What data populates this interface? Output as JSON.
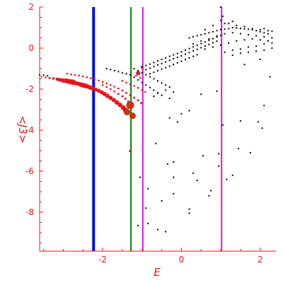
{
  "chart_data": {
    "type": "scatter",
    "title": "",
    "xlabel": "E",
    "ylabel": "<J3>",
    "xlim": [
      -3.6,
      2.4
    ],
    "ylim": [
      -9.9,
      2.0
    ],
    "xticks": [
      -2,
      0,
      2
    ],
    "yticks": [
      2,
      0,
      -2,
      -4,
      -6,
      -8
    ],
    "grid": false,
    "axis_color": "#e8141c",
    "vertical_lines": [
      {
        "x": -2.23,
        "color": "#0010e0",
        "width": "thick"
      },
      {
        "x": -1.28,
        "color": "#008000",
        "width": "thin"
      },
      {
        "x": -0.98,
        "color": "#e010e0",
        "width": "thin"
      },
      {
        "x": 1.02,
        "color": "#e010e0",
        "width": "thin"
      }
    ],
    "series": [
      {
        "color": "#e8141c",
        "marker": "circle-sized",
        "points": [
          [
            -3.55,
            -1.4,
            1.2
          ],
          [
            -3.45,
            -1.43,
            1.3
          ],
          [
            -3.35,
            -1.46,
            1.5
          ],
          [
            -3.25,
            -1.48,
            1.8
          ],
          [
            -3.15,
            -1.52,
            2.4
          ],
          [
            -3.08,
            -1.55,
            2.8
          ],
          [
            -3.0,
            -1.58,
            3.2
          ],
          [
            -2.92,
            -1.6,
            3.6
          ],
          [
            -2.84,
            -1.63,
            3.8
          ],
          [
            -2.76,
            -1.66,
            3.8
          ],
          [
            -2.7,
            -1.7,
            3.2
          ],
          [
            -2.62,
            -1.74,
            3.0
          ],
          [
            -2.55,
            -1.78,
            3.4
          ],
          [
            -2.48,
            -1.82,
            3.6
          ],
          [
            -2.4,
            -1.86,
            3.4
          ],
          [
            -2.32,
            -1.92,
            3.2
          ],
          [
            -2.25,
            -1.97,
            3.0
          ],
          [
            -2.18,
            -2.02,
            2.8
          ],
          [
            -2.1,
            -2.08,
            2.8
          ],
          [
            -2.02,
            -2.16,
            2.8
          ],
          [
            -1.95,
            -2.24,
            3.0
          ],
          [
            -1.88,
            -2.33,
            3.0
          ],
          [
            -1.8,
            -2.43,
            3.0
          ],
          [
            -1.72,
            -2.53,
            3.0
          ],
          [
            -1.64,
            -2.65,
            3.2
          ],
          [
            -1.56,
            -2.77,
            3.2
          ],
          [
            -1.48,
            -2.9,
            3.4
          ],
          [
            -1.42,
            -3.02,
            3.6
          ],
          [
            -1.38,
            -3.12,
            4.0
          ],
          [
            -1.3,
            -2.78,
            5.0
          ],
          [
            -1.24,
            -3.3,
            4.0
          ],
          [
            -1.3,
            -5.02,
            1.8
          ],
          [
            -1.1,
            -1.22,
            3.0
          ],
          [
            -1.0,
            -0.95,
            1.8
          ],
          [
            -2.9,
            -1.25,
            1.3
          ],
          [
            -2.8,
            -1.28,
            1.3
          ],
          [
            -2.7,
            -1.31,
            1.3
          ],
          [
            -2.6,
            -1.34,
            1.3
          ],
          [
            -2.5,
            -1.38,
            1.3
          ],
          [
            -2.4,
            -1.42,
            1.3
          ],
          [
            -2.3,
            -1.47,
            1.3
          ],
          [
            -2.2,
            -1.52,
            1.3
          ],
          [
            -2.1,
            -1.58,
            1.3
          ],
          [
            -2.0,
            -1.65,
            1.3
          ],
          [
            -1.9,
            -1.72,
            1.3
          ],
          [
            -1.8,
            -1.8,
            1.3
          ],
          [
            -1.7,
            -1.88,
            1.3
          ],
          [
            -1.6,
            -1.97,
            1.3
          ],
          [
            -1.5,
            -2.07,
            1.4
          ],
          [
            -1.4,
            -2.18,
            1.4
          ],
          [
            -1.3,
            -2.3,
            1.5
          ],
          [
            -1.2,
            -2.42,
            1.5
          ],
          [
            -1.1,
            -2.55,
            1.5
          ],
          [
            -1.02,
            -2.68,
            1.5
          ],
          [
            -2.0,
            -1.8,
            1.3
          ],
          [
            -1.9,
            -1.9,
            1.3
          ],
          [
            -1.8,
            -2.0,
            1.3
          ],
          [
            -1.7,
            -2.11,
            1.3
          ],
          [
            -1.6,
            -2.23,
            1.4
          ],
          [
            -1.5,
            -2.35,
            1.4
          ],
          [
            -1.42,
            -2.47,
            1.5
          ],
          [
            -1.35,
            -2.6,
            1.5
          ],
          [
            -1.5,
            -1.6,
            1.3
          ],
          [
            -1.4,
            -1.68,
            1.3
          ],
          [
            -1.3,
            -1.76,
            1.3
          ],
          [
            -1.2,
            -1.85,
            1.3
          ],
          [
            -1.1,
            -1.94,
            1.3
          ],
          [
            -1.0,
            -2.04,
            1.3
          ],
          [
            -0.92,
            -2.14,
            1.3
          ],
          [
            -1.15,
            -1.35,
            1.3
          ],
          [
            -1.05,
            -1.45,
            1.3
          ]
        ]
      },
      {
        "color": "#000000",
        "marker": "dot",
        "points": [
          [
            -3.6,
            -1.3
          ],
          [
            -3.5,
            -1.32
          ],
          [
            -3.4,
            -1.35
          ],
          [
            -1.9,
            -1.0
          ],
          [
            -1.8,
            -1.05
          ],
          [
            -1.7,
            -1.1
          ],
          [
            -1.6,
            -1.15
          ],
          [
            -1.5,
            -1.2
          ],
          [
            -1.4,
            -1.25
          ],
          [
            -1.3,
            -1.3
          ],
          [
            -1.2,
            -1.42
          ],
          [
            -1.1,
            -1.55
          ],
          [
            -1.0,
            -1.68
          ],
          [
            -0.9,
            -1.8
          ],
          [
            -0.8,
            -1.92
          ],
          [
            -0.7,
            -2.05
          ],
          [
            -0.6,
            -2.18
          ],
          [
            -0.5,
            -2.3
          ],
          [
            -1.2,
            -1.0
          ],
          [
            -1.1,
            -1.1
          ],
          [
            -1.0,
            -1.2
          ],
          [
            -0.9,
            -1.3
          ],
          [
            -0.8,
            -1.4
          ],
          [
            -0.7,
            -1.5
          ],
          [
            -0.6,
            -1.6
          ],
          [
            -0.5,
            -1.7
          ],
          [
            -0.4,
            -1.8
          ],
          [
            -0.3,
            -1.9
          ],
          [
            -1.0,
            -0.9
          ],
          [
            -0.9,
            -0.85
          ],
          [
            -0.8,
            -0.78
          ],
          [
            -0.7,
            -0.7
          ],
          [
            -0.6,
            -0.62
          ],
          [
            -0.5,
            -0.55
          ],
          [
            -0.4,
            -0.48
          ],
          [
            -0.3,
            -0.4
          ],
          [
            -0.2,
            -0.33
          ],
          [
            -0.1,
            -0.26
          ],
          [
            0.0,
            -0.18
          ],
          [
            0.1,
            -0.1
          ],
          [
            0.2,
            -0.02
          ],
          [
            0.3,
            0.06
          ],
          [
            0.4,
            0.14
          ],
          [
            0.5,
            0.22
          ],
          [
            0.6,
            0.3
          ],
          [
            0.7,
            0.38
          ],
          [
            0.8,
            0.46
          ],
          [
            0.9,
            0.54
          ],
          [
            1.0,
            0.62
          ],
          [
            -0.9,
            -1.05
          ],
          [
            -0.8,
            -0.98
          ],
          [
            -0.7,
            -0.9
          ],
          [
            -0.6,
            -0.82
          ],
          [
            -0.5,
            -0.75
          ],
          [
            -0.4,
            -0.68
          ],
          [
            -0.3,
            -0.6
          ],
          [
            -0.2,
            -0.52
          ],
          [
            -0.1,
            -0.45
          ],
          [
            0.0,
            -0.38
          ],
          [
            0.1,
            -0.3
          ],
          [
            0.2,
            -0.22
          ],
          [
            0.3,
            -0.14
          ],
          [
            0.4,
            -0.06
          ],
          [
            0.5,
            0.02
          ],
          [
            0.6,
            0.1
          ],
          [
            0.7,
            0.18
          ],
          [
            0.8,
            0.26
          ],
          [
            0.9,
            0.34
          ],
          [
            -0.8,
            -1.25
          ],
          [
            -0.7,
            -1.18
          ],
          [
            -0.6,
            -1.1
          ],
          [
            -0.5,
            -1.02
          ],
          [
            -0.4,
            -0.95
          ],
          [
            -0.3,
            -0.88
          ],
          [
            -0.2,
            -0.8
          ],
          [
            -0.1,
            -0.72
          ],
          [
            0.0,
            -0.64
          ],
          [
            0.1,
            -0.56
          ],
          [
            0.2,
            -0.48
          ],
          [
            0.3,
            -0.4
          ],
          [
            0.4,
            -0.32
          ],
          [
            0.2,
            0.5
          ],
          [
            0.3,
            0.55
          ],
          [
            0.4,
            0.6
          ],
          [
            0.5,
            0.65
          ],
          [
            0.6,
            0.7
          ],
          [
            0.7,
            0.75
          ],
          [
            0.8,
            0.8
          ],
          [
            0.9,
            0.85
          ],
          [
            1.0,
            0.9
          ],
          [
            1.1,
            0.92
          ],
          [
            1.2,
            0.95
          ],
          [
            1.3,
            1.0
          ],
          [
            1.4,
            0.98
          ],
          [
            1.5,
            0.96
          ],
          [
            1.6,
            0.94
          ],
          [
            1.7,
            0.92
          ],
          [
            1.8,
            0.9
          ],
          [
            1.9,
            0.85
          ],
          [
            2.0,
            0.8
          ],
          [
            2.1,
            0.75
          ],
          [
            2.2,
            0.7
          ],
          [
            0.3,
            0.2
          ],
          [
            0.5,
            0.35
          ],
          [
            0.7,
            0.45
          ],
          [
            0.9,
            0.6
          ],
          [
            1.1,
            0.7
          ],
          [
            1.3,
            0.75
          ],
          [
            1.5,
            0.7
          ],
          [
            1.7,
            0.65
          ],
          [
            1.9,
            0.6
          ],
          [
            2.1,
            0.55
          ],
          [
            2.3,
            0.5
          ],
          [
            0.6,
            -0.05
          ],
          [
            0.8,
            0.05
          ],
          [
            1.0,
            0.15
          ],
          [
            1.2,
            0.25
          ],
          [
            1.4,
            0.35
          ],
          [
            1.6,
            0.4
          ],
          [
            1.8,
            0.45
          ],
          [
            2.0,
            0.4
          ],
          [
            2.2,
            0.35
          ],
          [
            1.1,
            -0.2
          ],
          [
            1.3,
            -0.1
          ],
          [
            1.5,
            -0.05
          ],
          [
            1.7,
            0.05
          ],
          [
            1.9,
            0.1
          ],
          [
            2.1,
            0.2
          ],
          [
            2.3,
            0.25
          ],
          [
            1.3,
            -0.35
          ],
          [
            1.5,
            -0.25
          ],
          [
            1.7,
            -0.2
          ],
          [
            1.9,
            -0.15
          ],
          [
            2.1,
            -0.1
          ],
          [
            2.3,
            0.0
          ],
          [
            1.0,
            2.0
          ],
          [
            1.05,
            1.55
          ],
          [
            1.1,
            1.2
          ],
          [
            0.8,
            1.1
          ],
          [
            0.6,
            0.9
          ],
          [
            1.2,
            1.2
          ],
          [
            1.4,
            1.1
          ],
          [
            1.6,
            1.05
          ],
          [
            1.8,
            0.95
          ],
          [
            2.0,
            0.9
          ],
          [
            2.2,
            0.85
          ],
          [
            1.0,
            1.35
          ],
          [
            1.3,
            1.3
          ],
          [
            2.1,
            0.95
          ],
          [
            2.3,
            0.82
          ],
          [
            1.6,
            -0.8
          ],
          [
            2.0,
            -0.55
          ],
          [
            2.25,
            -1.4
          ],
          [
            0.5,
            -2.25
          ],
          [
            0.9,
            -2.1
          ],
          [
            -0.2,
            -2.15
          ],
          [
            -0.4,
            -2.05
          ],
          [
            -0.6,
            -2.2
          ],
          [
            -0.7,
            -2.35
          ],
          [
            -0.3,
            -2.45
          ],
          [
            0.0,
            -3.2
          ],
          [
            0.2,
            -3.05
          ],
          [
            -0.3,
            -3.4
          ],
          [
            -0.1,
            -3.6
          ],
          [
            1.05,
            -3.75
          ],
          [
            1.5,
            -3.55
          ],
          [
            1.95,
            -3.6
          ],
          [
            2.1,
            -2.8
          ],
          [
            -0.65,
            -4.65
          ],
          [
            -0.2,
            -5.55
          ],
          [
            0.55,
            -5.25
          ],
          [
            0.95,
            -5.15
          ],
          [
            1.45,
            -4.9
          ],
          [
            1.75,
            -5.1
          ],
          [
            2.05,
            -3.9
          ],
          [
            -1.05,
            -6.3
          ],
          [
            -0.35,
            -5.65
          ],
          [
            0.4,
            -6.45
          ],
          [
            0.95,
            -5.75
          ],
          [
            1.3,
            -6.2
          ],
          [
            -0.85,
            -6.85
          ],
          [
            -0.2,
            -6.3
          ],
          [
            0.3,
            -6.1
          ],
          [
            0.75,
            -6.95
          ],
          [
            1.15,
            -6.4
          ],
          [
            -0.5,
            -7.45
          ],
          [
            -0.2,
            -7.1
          ],
          [
            0.2,
            -7.85
          ],
          [
            0.7,
            -7.2
          ],
          [
            -0.9,
            -7.8
          ],
          [
            -1.1,
            -8.65
          ],
          [
            -0.6,
            -8.85
          ],
          [
            -0.4,
            -8.95
          ],
          [
            0.2,
            -8.05
          ],
          [
            -0.85,
            -8.55
          ]
        ]
      }
    ]
  }
}
